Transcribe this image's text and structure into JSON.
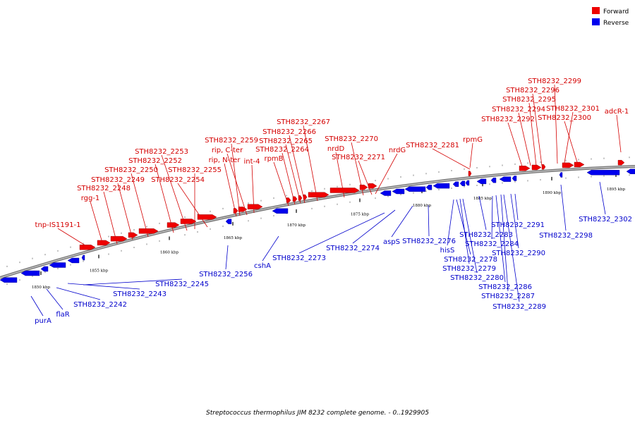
{
  "legend": {
    "forward": {
      "label": "Forward",
      "color": "#ee0000"
    },
    "reverse": {
      "label": "Reverse",
      "color": "#0000ee"
    }
  },
  "caption": "Streptococcus thermophilus JIM 8232 complete genome. - 0..1929905",
  "scale": {
    "ticks": [
      "1850 kbp",
      "1855 kbp",
      "1860 kbp",
      "1865 kbp",
      "1870 kbp",
      "1875 kbp",
      "1880 kbp",
      "1885 kbp",
      "1890 kbp",
      "1895 kbp"
    ]
  },
  "forward_labels": [
    "tnp-IS1191-1",
    "STH8232_2248",
    "rgg-1",
    "STH8232_2249",
    "STH8232_2250",
    "STH8232_2252",
    "STH8232_2253",
    "STH8232_2254",
    "STH8232_2255",
    "STH8232_2259",
    "rip, C-ter",
    "rip, N-ter",
    "int-4",
    "rpmB",
    "STH8232_2264",
    "STH8232_2265",
    "STH8232_2266",
    "STH8232_2267",
    "nrdD",
    "STH8232_2270",
    "STH8232_2271",
    "nrdG",
    "STH8232_2281",
    "rpmG",
    "STH8232_2292",
    "STH8232_2294",
    "STH8232_2295",
    "STH8232_2296",
    "STH8232_2299",
    "STH8232_2301",
    "STH8232_2300",
    "adcR-1"
  ],
  "reverse_labels": [
    "purA",
    "flaR",
    "STH8232_2242",
    "STH8232_2243",
    "STH8232_2245",
    "STH8232_2256",
    "cshA",
    "STH8232_2273",
    "STH8232_2274",
    "aspS",
    "STH8232_2276",
    "hisS",
    "STH8232_2278",
    "STH8232_2279",
    "STH8232_2280",
    "STH8232_2283",
    "STH8232_2284",
    "STH8232_2286",
    "STH8232_2287",
    "STH8232_2289",
    "STH8232_2290",
    "STH8232_2291",
    "STH8232_2298",
    "STH8232_2302"
  ]
}
